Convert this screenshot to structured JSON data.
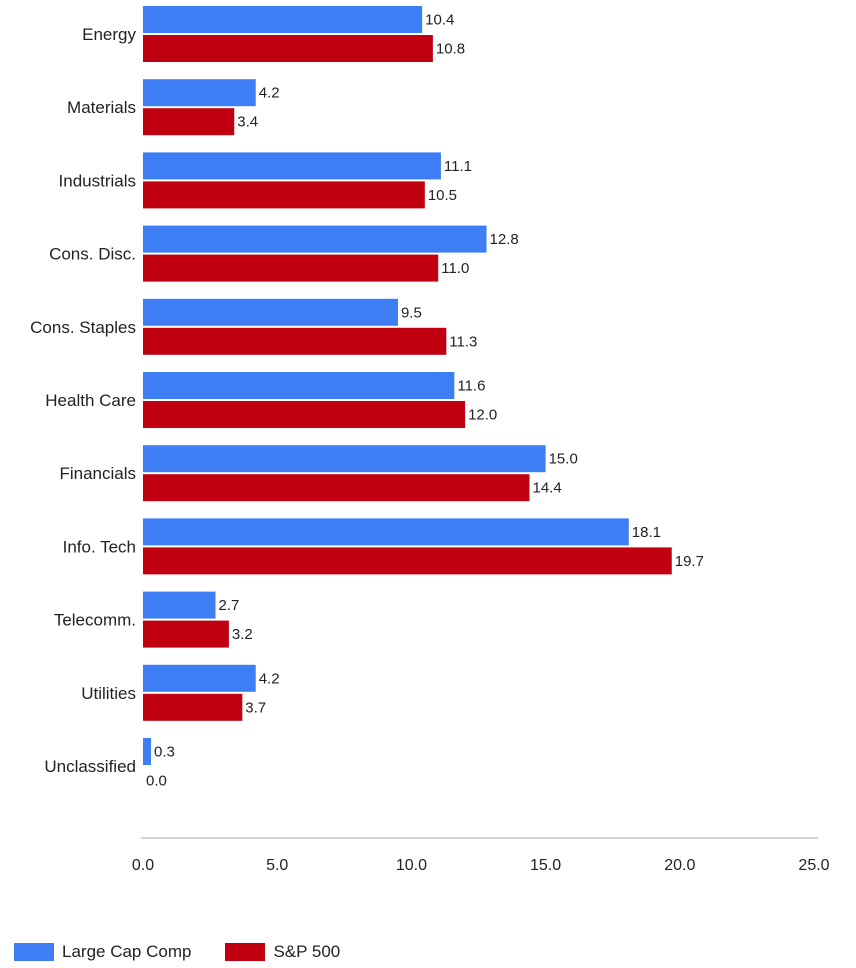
{
  "chart_data": {
    "type": "bar",
    "orientation": "horizontal",
    "categories": [
      "Energy",
      "Materials",
      "Industrials",
      "Cons. Disc.",
      "Cons. Staples",
      "Health Care",
      "Financials",
      "Info. Tech",
      "Telecomm.",
      "Utilities",
      "Unclassified"
    ],
    "series": [
      {
        "name": "Large Cap Comp",
        "color": "#3d7ef5",
        "values": [
          10.4,
          4.2,
          11.1,
          12.8,
          9.5,
          11.6,
          15.0,
          18.1,
          2.7,
          4.2,
          0.3
        ],
        "labels": [
          "10.4",
          "4.2",
          "11.1",
          "12.8",
          "9.5",
          "11.6",
          "15.0",
          "18.1",
          "2.7",
          "4.2",
          "0.3"
        ]
      },
      {
        "name": "S&P 500",
        "color": "#c00010",
        "values": [
          10.8,
          3.4,
          10.5,
          11.0,
          11.3,
          12.0,
          14.4,
          19.7,
          3.2,
          3.7,
          0.0
        ],
        "labels": [
          "10.8",
          "3.4",
          "10.5",
          "11.0",
          "11.3",
          "12.0",
          "14.4",
          "19.7",
          "3.2",
          "3.7",
          "0.0"
        ]
      }
    ],
    "xlim": [
      0,
      25
    ],
    "xticks": [
      "0.0",
      "5.0",
      "10.0",
      "15.0",
      "20.0",
      "25.0"
    ],
    "grid": false,
    "legend_position": "bottom-left"
  }
}
